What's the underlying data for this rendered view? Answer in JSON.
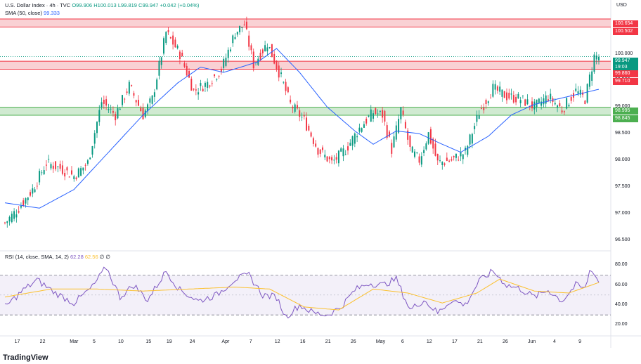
{
  "header": {
    "symbol": "U.S. Dollar Index · 4h · TVC",
    "open": "O99.906",
    "high": "H100.013",
    "low": "L99.819",
    "close": "C99.947",
    "change": "+0.042 (+0.04%)",
    "sma_label": "SMA (50, close)",
    "sma_value": "99.333",
    "rsi_label": "RSI (14, close, SMA, 14, 2)",
    "rsi_value": "62.28",
    "rsi_sma_value": "62.56",
    "rsi_extra_1": "∅",
    "rsi_extra_2": "∅"
  },
  "axis_currency": "USD",
  "price_ticks": [
    "100.000",
    "99.500",
    "99.000",
    "98.500",
    "98.000",
    "97.500",
    "97.000",
    "96.500"
  ],
  "rsi_ticks": [
    "80.00",
    "60.00",
    "40.00",
    "20.00"
  ],
  "x_ticks": [
    "17",
    "22",
    "Mar",
    "5",
    "10",
    "15",
    "19",
    "24",
    "Apr",
    "7",
    "12",
    "16",
    "21",
    "26",
    "May",
    "6",
    "12",
    "17",
    "21",
    "26",
    "Jun",
    "4",
    "9"
  ],
  "tags": {
    "r1_top": "100.654",
    "r1_bottom": "100.502",
    "price": "99.947",
    "countdown": "19:03",
    "r2_top": "99.860",
    "r2_bottom": "99.710",
    "s_top": "98.995",
    "s_bottom": "98.845"
  },
  "logo_text": "TradingView",
  "colors": {
    "up": "#089981",
    "down": "#f23645",
    "sma": "#2962ff",
    "rsi": "#7e57c2",
    "rsi_sma": "#fbc02d",
    "resistance_fill": "#f8c9cc",
    "resistance_line": "#f23645",
    "support_fill": "#c8e6c9",
    "support_line": "#4caf50"
  },
  "chart_data": {
    "type": "candlestick",
    "title": "U.S. Dollar Index · 4h · TVC",
    "ylabel": "USD",
    "ylim": [
      96.35,
      100.72
    ],
    "zones": [
      {
        "kind": "resistance",
        "top": 100.654,
        "bottom": 100.502
      },
      {
        "kind": "resistance",
        "top": 99.86,
        "bottom": 99.71
      },
      {
        "kind": "support",
        "top": 98.995,
        "bottom": 98.845
      }
    ],
    "close_path": [
      {
        "i": 0,
        "p": 96.82
      },
      {
        "i": 6,
        "p": 97.1
      },
      {
        "i": 12,
        "p": 97.45
      },
      {
        "i": 18,
        "p": 97.95
      },
      {
        "i": 24,
        "p": 97.85
      },
      {
        "i": 30,
        "p": 97.7
      },
      {
        "i": 36,
        "p": 97.95
      },
      {
        "i": 42,
        "p": 99.1
      },
      {
        "i": 48,
        "p": 98.85
      },
      {
        "i": 54,
        "p": 99.4
      },
      {
        "i": 60,
        "p": 98.85
      },
      {
        "i": 64,
        "p": 99.15
      },
      {
        "i": 70,
        "p": 100.4
      },
      {
        "i": 76,
        "p": 100.0
      },
      {
        "i": 82,
        "p": 99.3
      },
      {
        "i": 88,
        "p": 99.45
      },
      {
        "i": 94,
        "p": 99.7
      },
      {
        "i": 100,
        "p": 100.4
      },
      {
        "i": 104,
        "p": 100.55
      },
      {
        "i": 108,
        "p": 99.8
      },
      {
        "i": 114,
        "p": 100.2
      },
      {
        "i": 120,
        "p": 99.55
      },
      {
        "i": 124,
        "p": 99.05
      },
      {
        "i": 130,
        "p": 98.75
      },
      {
        "i": 136,
        "p": 98.2
      },
      {
        "i": 142,
        "p": 97.95
      },
      {
        "i": 148,
        "p": 98.2
      },
      {
        "i": 154,
        "p": 98.6
      },
      {
        "i": 160,
        "p": 98.9
      },
      {
        "i": 164,
        "p": 98.85
      },
      {
        "i": 168,
        "p": 98.2
      },
      {
        "i": 172,
        "p": 98.95
      },
      {
        "i": 176,
        "p": 98.2
      },
      {
        "i": 180,
        "p": 98.0
      },
      {
        "i": 184,
        "p": 98.5
      },
      {
        "i": 188,
        "p": 97.95
      },
      {
        "i": 194,
        "p": 98.0
      },
      {
        "i": 200,
        "p": 98.15
      },
      {
        "i": 206,
        "p": 98.9
      },
      {
        "i": 212,
        "p": 99.35
      },
      {
        "i": 218,
        "p": 99.2
      },
      {
        "i": 224,
        "p": 99.15
      },
      {
        "i": 230,
        "p": 99.0
      },
      {
        "i": 236,
        "p": 99.2
      },
      {
        "i": 242,
        "p": 98.95
      },
      {
        "i": 248,
        "p": 99.3
      },
      {
        "i": 252,
        "p": 99.15
      },
      {
        "i": 254,
        "p": 99.55
      },
      {
        "i": 256,
        "p": 99.95
      },
      {
        "i": 258,
        "p": 99.947
      }
    ],
    "sma50_path": [
      {
        "i": 0,
        "p": 97.2
      },
      {
        "i": 15,
        "p": 97.1
      },
      {
        "i": 30,
        "p": 97.45
      },
      {
        "i": 45,
        "p": 98.15
      },
      {
        "i": 60,
        "p": 98.85
      },
      {
        "i": 75,
        "p": 99.45
      },
      {
        "i": 85,
        "p": 99.75
      },
      {
        "i": 95,
        "p": 99.65
      },
      {
        "i": 110,
        "p": 99.85
      },
      {
        "i": 118,
        "p": 100.1
      },
      {
        "i": 128,
        "p": 99.65
      },
      {
        "i": 140,
        "p": 99.0
      },
      {
        "i": 152,
        "p": 98.55
      },
      {
        "i": 160,
        "p": 98.3
      },
      {
        "i": 170,
        "p": 98.55
      },
      {
        "i": 180,
        "p": 98.5
      },
      {
        "i": 190,
        "p": 98.3
      },
      {
        "i": 198,
        "p": 98.15
      },
      {
        "i": 210,
        "p": 98.45
      },
      {
        "i": 220,
        "p": 98.85
      },
      {
        "i": 230,
        "p": 99.05
      },
      {
        "i": 240,
        "p": 99.15
      },
      {
        "i": 250,
        "p": 99.25
      },
      {
        "i": 258,
        "p": 99.333
      }
    ],
    "rsi_path": [
      {
        "i": 0,
        "p": 38
      },
      {
        "i": 8,
        "p": 55
      },
      {
        "i": 14,
        "p": 65
      },
      {
        "i": 22,
        "p": 52
      },
      {
        "i": 30,
        "p": 42
      },
      {
        "i": 38,
        "p": 58
      },
      {
        "i": 44,
        "p": 78
      },
      {
        "i": 50,
        "p": 48
      },
      {
        "i": 56,
        "p": 60
      },
      {
        "i": 62,
        "p": 45
      },
      {
        "i": 70,
        "p": 74
      },
      {
        "i": 76,
        "p": 55
      },
      {
        "i": 84,
        "p": 44
      },
      {
        "i": 92,
        "p": 50
      },
      {
        "i": 100,
        "p": 66
      },
      {
        "i": 106,
        "p": 70
      },
      {
        "i": 112,
        "p": 50
      },
      {
        "i": 118,
        "p": 48
      },
      {
        "i": 122,
        "p": 28
      },
      {
        "i": 128,
        "p": 40
      },
      {
        "i": 134,
        "p": 32
      },
      {
        "i": 140,
        "p": 30
      },
      {
        "i": 146,
        "p": 38
      },
      {
        "i": 152,
        "p": 55
      },
      {
        "i": 158,
        "p": 62
      },
      {
        "i": 164,
        "p": 60
      },
      {
        "i": 170,
        "p": 66
      },
      {
        "i": 176,
        "p": 35
      },
      {
        "i": 182,
        "p": 45
      },
      {
        "i": 188,
        "p": 32
      },
      {
        "i": 194,
        "p": 45
      },
      {
        "i": 200,
        "p": 40
      },
      {
        "i": 206,
        "p": 64
      },
      {
        "i": 212,
        "p": 74
      },
      {
        "i": 218,
        "p": 60
      },
      {
        "i": 224,
        "p": 56
      },
      {
        "i": 230,
        "p": 48
      },
      {
        "i": 236,
        "p": 55
      },
      {
        "i": 242,
        "p": 44
      },
      {
        "i": 248,
        "p": 60
      },
      {
        "i": 252,
        "p": 56
      },
      {
        "i": 254,
        "p": 74
      },
      {
        "i": 256,
        "p": 73
      },
      {
        "i": 258,
        "p": 62.28
      }
    ],
    "rsi_sma_path": [
      {
        "i": 0,
        "p": 48
      },
      {
        "i": 20,
        "p": 56
      },
      {
        "i": 40,
        "p": 56
      },
      {
        "i": 60,
        "p": 54
      },
      {
        "i": 80,
        "p": 56
      },
      {
        "i": 100,
        "p": 58
      },
      {
        "i": 115,
        "p": 56
      },
      {
        "i": 130,
        "p": 38
      },
      {
        "i": 145,
        "p": 35
      },
      {
        "i": 160,
        "p": 56
      },
      {
        "i": 175,
        "p": 52
      },
      {
        "i": 190,
        "p": 42
      },
      {
        "i": 205,
        "p": 52
      },
      {
        "i": 215,
        "p": 66
      },
      {
        "i": 230,
        "p": 54
      },
      {
        "i": 245,
        "p": 52
      },
      {
        "i": 258,
        "p": 62.56
      }
    ],
    "n_bars": 259,
    "price_range": [
      96.35,
      100.72
    ],
    "rsi_range": [
      16,
      88
    ],
    "x_tick_index": [
      6,
      17,
      30,
      40,
      51,
      63,
      72,
      82,
      96,
      108,
      119,
      130,
      141,
      152,
      163,
      174,
      185,
      196,
      207,
      218,
      229,
      240,
      251
    ]
  }
}
